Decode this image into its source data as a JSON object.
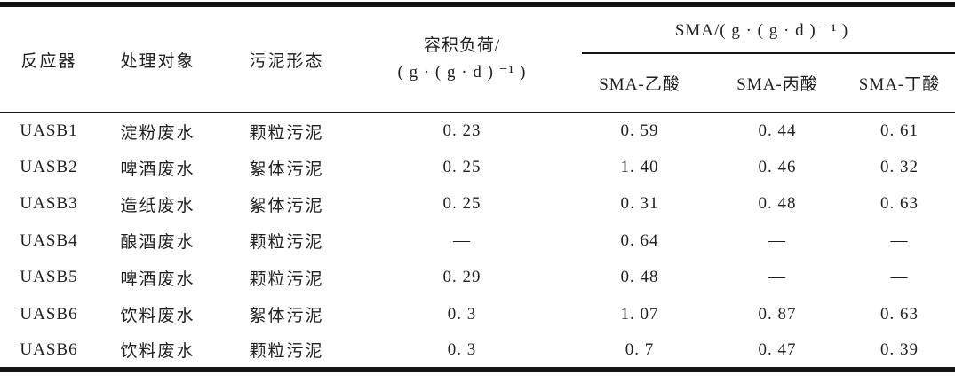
{
  "table": {
    "columns": {
      "reactor": "反应器",
      "treatment_target": "处理对象",
      "sludge_form": "污泥形态",
      "volumetric_load_line1": "容积负荷/",
      "volumetric_load_line2": "( g · ( g · d ) ⁻¹ )",
      "sma_group": "SMA/( g · ( g · d ) ⁻¹ )",
      "sma_acetate": "SMA-乙酸",
      "sma_propionate": "SMA-丙酸",
      "sma_butyrate": "SMA-丁酸"
    },
    "rows": [
      [
        "UASB1",
        "淀粉废水",
        "颗粒污泥",
        "0. 23",
        "0. 59",
        "0. 44",
        "0. 61"
      ],
      [
        "UASB2",
        "啤酒废水",
        "絮体污泥",
        "0. 25",
        "1. 40",
        "0. 46",
        "0. 32"
      ],
      [
        "UASB3",
        "造纸废水",
        "絮体污泥",
        "0. 25",
        "0. 31",
        "0. 48",
        "0. 63"
      ],
      [
        "UASB4",
        "酿酒废水",
        "颗粒污泥",
        "—",
        "0. 64",
        "—",
        "—"
      ],
      [
        "UASB5",
        "啤酒废水",
        "颗粒污泥",
        "0. 29",
        "0. 48",
        "—",
        "—"
      ],
      [
        "UASB6",
        "饮料废水",
        "絮体污泥",
        "0. 3",
        "1. 07",
        "0. 87",
        "0. 63"
      ],
      [
        "UASB6",
        "饮料废水",
        "颗粒污泥",
        "0. 3",
        "0. 7",
        "0. 47",
        "0. 39"
      ]
    ],
    "colors": {
      "text": "#1f1f1f",
      "rule": "#141414",
      "background": "#ffffff"
    }
  }
}
